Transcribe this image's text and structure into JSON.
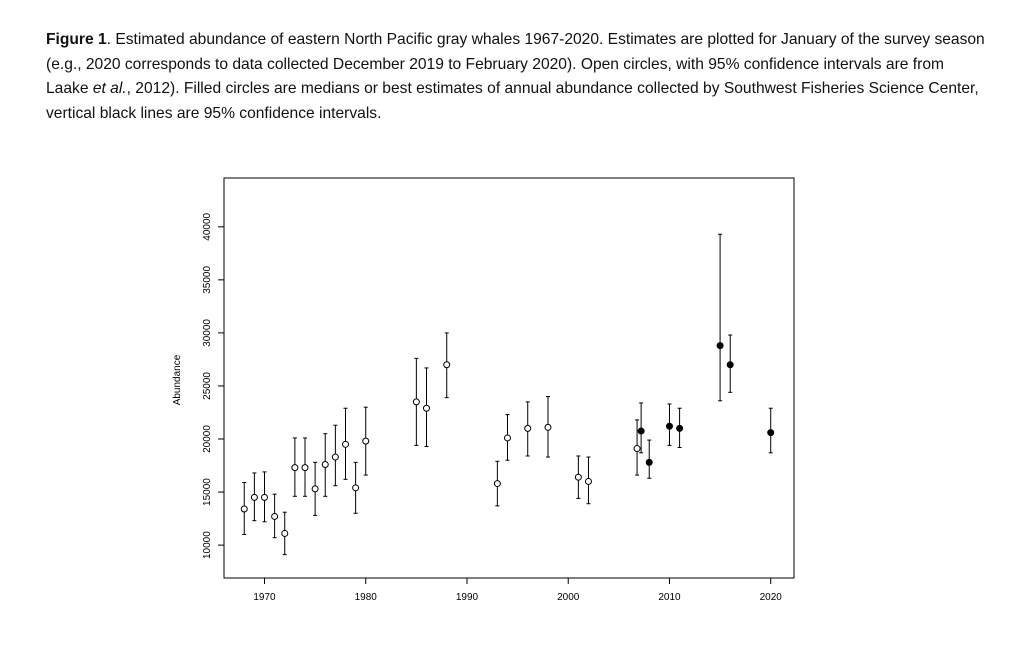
{
  "caption": [
    "Figure 1",
    ". Estimated abundance of eastern North Pacific gray whales 1967-2020. Estimates are plotted for January of the survey season (e.g., 2020 corresponds to data collected December 2019 to February 2020). Open circles, with 95% confidence intervals are from Laake ",
    "et al.",
    ", 2012). Filled circles are medians or best estimates of annual abundance collected by Southwest Fisheries Science Center, vertical black lines are 95% confidence intervals."
  ],
  "chart_data": {
    "type": "scatter",
    "y_label": "Abundance",
    "xlim": [
      1966,
      2022.3
    ],
    "xticks": [
      1970,
      1980,
      1990,
      2000,
      2010,
      2020
    ],
    "ylim": [
      6900,
      44600
    ],
    "yticks": [
      10000,
      15000,
      20000,
      25000,
      30000,
      35000,
      40000
    ],
    "series": [
      {
        "marker": "open",
        "color": "#000000",
        "x": [
          1968,
          1969,
          1970,
          1971,
          1972,
          1973,
          1974,
          1975,
          1976,
          1977,
          1978,
          1979,
          1980,
          1985,
          1986,
          1988,
          1993,
          1994,
          1996,
          1998,
          2001,
          2002,
          2006.8
        ],
        "values": [
          13400,
          14500,
          14500,
          12700,
          11100,
          17300,
          17300,
          15300,
          17600,
          18300,
          19500,
          15400,
          19800,
          23500,
          22900,
          27000,
          15800,
          20100,
          21000,
          21100,
          16400,
          16000,
          19100
        ],
        "lower": [
          11000,
          12300,
          12200,
          10700,
          9100,
          14600,
          14600,
          12800,
          14600,
          15600,
          16200,
          13000,
          16600,
          19400,
          19300,
          23900,
          13700,
          18000,
          18400,
          18300,
          14400,
          13900,
          16600
        ],
        "upper": [
          15900,
          16800,
          16900,
          14800,
          13100,
          20100,
          20100,
          17800,
          20500,
          21300,
          22900,
          17800,
          23000,
          27600,
          26700,
          30000,
          17900,
          22300,
          23500,
          24000,
          18400,
          18300,
          21800
        ]
      },
      {
        "marker": "filled",
        "color": "#000000",
        "x": [
          2007.2,
          2008,
          2010,
          2011,
          2015,
          2016,
          2020
        ],
        "values": [
          20750,
          17800,
          21200,
          21000,
          28800,
          27000,
          20600
        ],
        "lower": [
          18700,
          16300,
          19400,
          19200,
          23600,
          24400,
          18700
        ],
        "upper": [
          23400,
          19900,
          23300,
          22900,
          39300,
          29800,
          22900
        ]
      }
    ]
  }
}
